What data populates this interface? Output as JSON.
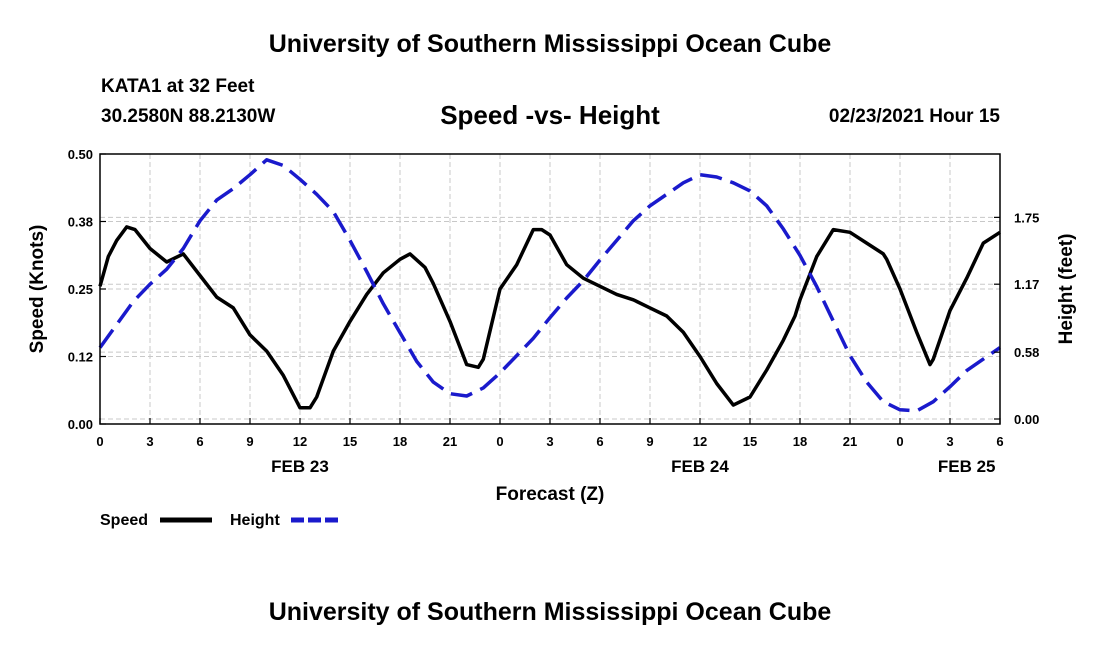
{
  "header": {
    "title": "University of Southern Mississippi Ocean Cube",
    "footer_title": "University of Southern Mississippi Ocean Cube",
    "station": "KATA1 at 32 Feet",
    "coordinates": "30.2580N 88.2130W",
    "subtitle": "Speed -vs- Height",
    "datetime": "02/23/2021 Hour 15"
  },
  "colors": {
    "speed": "#000000",
    "height": "#1a1acc",
    "grid": "#c8c8c8"
  },
  "chart_data": {
    "type": "line",
    "title": "Speed -vs- Height",
    "xlabel": "Forecast (Z)",
    "ylabel": "Speed (Knots)",
    "ylabel_right": "Height (feet)",
    "xlim": [
      0,
      54
    ],
    "ylim": [
      0,
      0.5
    ],
    "ylim_right": [
      0,
      2.3
    ],
    "grid": true,
    "x_ticks": [
      0,
      3,
      6,
      9,
      12,
      15,
      18,
      21,
      24,
      27,
      30,
      33,
      36,
      39,
      42,
      45,
      48,
      51,
      54
    ],
    "x_tick_labels": [
      "0",
      "3",
      "6",
      "9",
      "12",
      "15",
      "18",
      "21",
      "0",
      "3",
      "6",
      "9",
      "12",
      "15",
      "18",
      "21",
      "0",
      "3",
      "6"
    ],
    "day_labels": [
      {
        "label": "FEB 23",
        "x": 12
      },
      {
        "label": "FEB 24",
        "x": 36
      },
      {
        "label": "FEB 25",
        "x": 52
      }
    ],
    "y_ticks": [
      0,
      0.125,
      0.25,
      0.375,
      0.5
    ],
    "y_tick_labels": [
      "0.00",
      "0.12",
      "0.25",
      "0.38",
      "0.50"
    ],
    "y_ticks_right": [
      0,
      0.58,
      1.17,
      1.75
    ],
    "y_tick_labels_right": [
      "0.00",
      "0.58",
      "1.17",
      "1.75"
    ],
    "series": [
      {
        "name": "Speed",
        "axis": "left",
        "style": "solid",
        "x": [
          0,
          0.5,
          1,
          1.6,
          2.1,
          3,
          4,
          5,
          6,
          7,
          8,
          9,
          10,
          11,
          12,
          12.6,
          13,
          14,
          15,
          16,
          17,
          18,
          18.6,
          19.5,
          20,
          21,
          22,
          22.7,
          23,
          24,
          25,
          26,
          26.5,
          27,
          28,
          29,
          30,
          31,
          32,
          33,
          34,
          35,
          36,
          36.7,
          37,
          38,
          39,
          40,
          41,
          41.7,
          42,
          43,
          44,
          45,
          46,
          47,
          47.2,
          48,
          49,
          49.8,
          50,
          51,
          52,
          53,
          54
        ],
        "values": [
          0.255,
          0.31,
          0.34,
          0.365,
          0.36,
          0.325,
          0.3,
          0.315,
          0.275,
          0.235,
          0.215,
          0.165,
          0.135,
          0.09,
          0.03,
          0.03,
          0.05,
          0.135,
          0.19,
          0.24,
          0.28,
          0.305,
          0.315,
          0.29,
          0.26,
          0.19,
          0.11,
          0.105,
          0.12,
          0.25,
          0.295,
          0.36,
          0.36,
          0.35,
          0.295,
          0.27,
          0.255,
          0.24,
          0.23,
          0.215,
          0.2,
          0.17,
          0.125,
          0.09,
          0.075,
          0.035,
          0.05,
          0.1,
          0.155,
          0.2,
          0.23,
          0.31,
          0.36,
          0.355,
          0.335,
          0.315,
          0.305,
          0.25,
          0.17,
          0.11,
          0.12,
          0.21,
          0.27,
          0.335,
          0.355
        ]
      },
      {
        "name": "Height",
        "axis": "right",
        "style": "dashed",
        "x": [
          0,
          1,
          2,
          3,
          4,
          5,
          6,
          7,
          8,
          9,
          10,
          11,
          12,
          13,
          14,
          15,
          16,
          17,
          18,
          19,
          20,
          21,
          22,
          23,
          24,
          25,
          26,
          27,
          28,
          29,
          30,
          31,
          32,
          33,
          34,
          35,
          36,
          37,
          38,
          39,
          40,
          41,
          42,
          43,
          44,
          45,
          46,
          47,
          48,
          49,
          50,
          51,
          52,
          53,
          54
        ],
        "values": [
          0.62,
          0.82,
          1.02,
          1.17,
          1.3,
          1.48,
          1.72,
          1.9,
          2.0,
          2.12,
          2.25,
          2.2,
          2.08,
          1.95,
          1.8,
          1.55,
          1.28,
          1.0,
          0.75,
          0.5,
          0.32,
          0.22,
          0.2,
          0.27,
          0.4,
          0.55,
          0.7,
          0.88,
          1.05,
          1.2,
          1.38,
          1.55,
          1.72,
          1.85,
          1.95,
          2.05,
          2.12,
          2.1,
          2.05,
          1.98,
          1.85,
          1.65,
          1.42,
          1.15,
          0.85,
          0.55,
          0.32,
          0.15,
          0.08,
          0.07,
          0.15,
          0.28,
          0.42,
          0.52,
          0.62
        ]
      }
    ],
    "legend": [
      "Speed",
      "Height"
    ],
    "legend_position": "bottom-left"
  }
}
